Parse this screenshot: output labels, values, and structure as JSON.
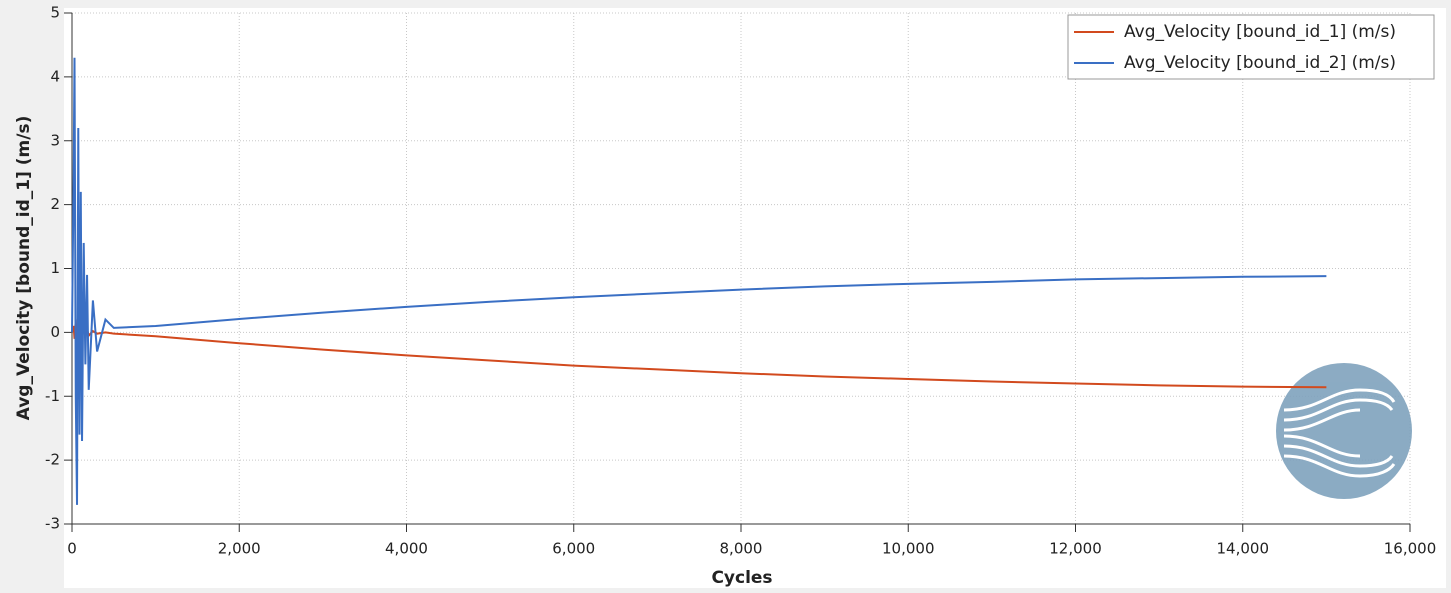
{
  "chart_data": {
    "type": "line",
    "xlabel": "Cycles",
    "ylabel": "Avg_Velocity [bound_id_1] (m/s)",
    "x": [
      0,
      20,
      30,
      45,
      60,
      75,
      90,
      105,
      120,
      140,
      160,
      180,
      200,
      250,
      300,
      400,
      500,
      1000,
      2000,
      3000,
      4000,
      5000,
      6000,
      7000,
      8000,
      9000,
      10000,
      11000,
      12000,
      13000,
      14000,
      15000
    ],
    "series": [
      {
        "name": "Avg_Velocity [bound_id_1] (m/s)",
        "color": "#d24a1e",
        "values": [
          0,
          0.1,
          -0.1,
          0.2,
          -0.2,
          0.1,
          -0.1,
          0.05,
          -0.05,
          0.1,
          0.0,
          0.05,
          -0.05,
          0.02,
          -0.02,
          0.0,
          -0.02,
          -0.06,
          -0.17,
          -0.27,
          -0.36,
          -0.44,
          -0.52,
          -0.58,
          -0.64,
          -0.69,
          -0.73,
          -0.77,
          -0.8,
          -0.83,
          -0.85,
          -0.86
        ]
      },
      {
        "name": "Avg_Velocity [bound_id_2] (m/s)",
        "color": "#3a6fc4",
        "values": [
          0,
          2.5,
          4.3,
          -1.0,
          -2.7,
          3.2,
          -1.6,
          2.2,
          -1.7,
          1.4,
          -0.5,
          0.9,
          -0.9,
          0.5,
          -0.3,
          0.2,
          0.07,
          0.1,
          0.21,
          0.31,
          0.4,
          0.48,
          0.55,
          0.61,
          0.67,
          0.72,
          0.76,
          0.79,
          0.83,
          0.85,
          0.87,
          0.88
        ]
      }
    ],
    "xlim": [
      0,
      16000
    ],
    "xticks": [
      0,
      {
        "value": 2000,
        "label": "2,000"
      },
      {
        "value": 4000,
        "label": "4,000"
      },
      {
        "value": 6000,
        "label": "6,000"
      },
      {
        "value": 8000,
        "label": "8,000"
      },
      {
        "value": 10000,
        "label": "10,000"
      },
      {
        "value": 12000,
        "label": "12,000"
      },
      {
        "value": 14000,
        "label": "14,000"
      },
      {
        "value": 16000,
        "label": "16,000"
      }
    ],
    "ylim": [
      -3,
      5
    ],
    "yticks": [
      -3,
      -2,
      -1,
      0,
      1,
      2,
      3,
      4,
      5
    ],
    "grid": true,
    "legend": "upper-right"
  }
}
